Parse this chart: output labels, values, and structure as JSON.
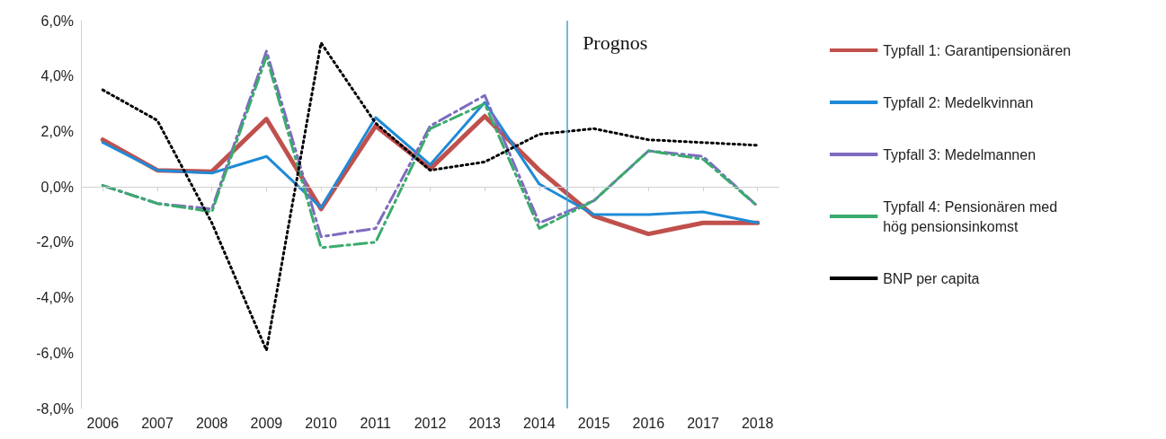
{
  "chart_data": {
    "type": "line",
    "x": [
      2006,
      2007,
      2008,
      2009,
      2010,
      2011,
      2012,
      2013,
      2014,
      2015,
      2016,
      2017,
      2018
    ],
    "xlim": [
      2005.6,
      2018.4
    ],
    "xticks": [
      2006,
      2007,
      2008,
      2009,
      2010,
      2011,
      2012,
      2013,
      2014,
      2015,
      2016,
      2017,
      2018
    ],
    "ylim": [
      -8,
      6
    ],
    "yticks": [
      {
        "value": -8,
        "label": "-8,0%"
      },
      {
        "value": -6,
        "label": "-6,0%"
      },
      {
        "value": -4,
        "label": "-4,0%"
      },
      {
        "value": -2,
        "label": "-2,0%"
      },
      {
        "value": 0,
        "label": "0,0%"
      },
      {
        "value": 2,
        "label": "2,0%"
      },
      {
        "value": 4,
        "label": "4,0%"
      },
      {
        "value": 6,
        "label": "6,0%"
      }
    ],
    "series": [
      {
        "name": "Typfall 1: Garantipensionären",
        "color": "#c0504d",
        "line_style": "solid",
        "values": [
          1.7,
          0.6,
          0.55,
          2.45,
          -0.8,
          2.2,
          0.65,
          2.55,
          0.6,
          -1.05,
          -1.7,
          -1.3,
          -1.3
        ]
      },
      {
        "name": "Typfall 2: Medelkvinnan",
        "color": "#1f8ad6",
        "line_style": "solid",
        "values": [
          1.6,
          0.6,
          0.5,
          1.1,
          -0.75,
          2.5,
          0.8,
          3.05,
          0.1,
          -1.0,
          -1.0,
          -0.9,
          -1.3
        ]
      },
      {
        "name": "Typfall 3: Medelmannen",
        "color": "#7f6bbf",
        "line_style": "dashed",
        "values": [
          0.05,
          -0.6,
          -0.8,
          4.9,
          -1.8,
          -1.5,
          2.2,
          3.3,
          -1.3,
          -0.5,
          1.3,
          1.1,
          -0.7
        ]
      },
      {
        "name": "Typfall 4: Pensionären med hög pensionsinkomst",
        "color": "#3bab6e",
        "line_style": "dashed",
        "values": [
          0.05,
          -0.6,
          -0.9,
          4.7,
          -2.2,
          -2.0,
          2.1,
          3.0,
          -1.5,
          -0.5,
          1.3,
          1.0,
          -0.7
        ]
      },
      {
        "name": "BNP per capita",
        "color": "#000000",
        "line_style": "dotted",
        "values": [
          3.5,
          2.4,
          -1.3,
          -5.9,
          5.2,
          2.3,
          0.6,
          0.9,
          1.9,
          2.1,
          1.7,
          1.6,
          1.5
        ]
      }
    ],
    "ref_lines": [
      {
        "axis": "x",
        "value": 2014.5,
        "label": "Prognos",
        "color": "#4a9fd8"
      },
      {
        "axis": "y",
        "value": 0,
        "color": "#d0d0d0"
      }
    ],
    "marker": "none",
    "grid": false,
    "legend": "right"
  }
}
